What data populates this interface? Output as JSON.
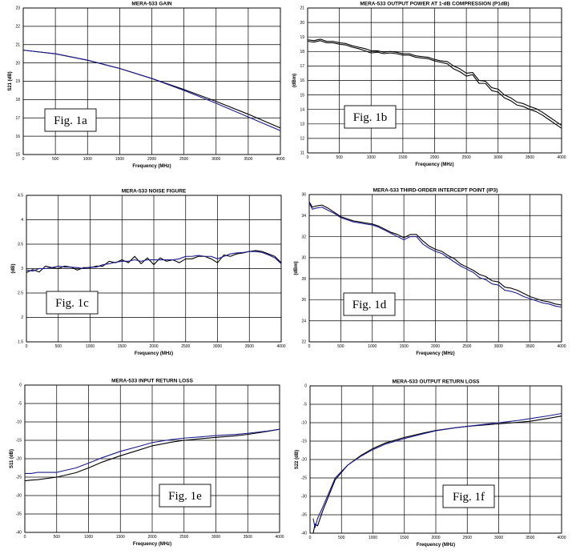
{
  "chart_data": [
    {
      "id": "gain",
      "type": "line",
      "title": "MERA-533    GAIN",
      "xlabel": "Frequency (MHz)",
      "ylabel": "S21 (dB)",
      "xlim": [
        0,
        4000
      ],
      "ylim": [
        15,
        23
      ],
      "xticks": [
        0,
        500,
        1000,
        1500,
        2000,
        2500,
        3000,
        3500,
        4000
      ],
      "yticks": [
        15,
        16,
        17,
        18,
        19,
        20,
        21,
        22,
        23
      ],
      "grid": true,
      "fig_label": "Fig. 1a",
      "series": [
        {
          "color": "#000000",
          "x": [
            0,
            500,
            1000,
            1500,
            2000,
            2500,
            3000,
            3500,
            4000
          ],
          "y": [
            20.7,
            20.5,
            20.15,
            19.7,
            19.15,
            18.55,
            17.9,
            17.2,
            16.45
          ]
        },
        {
          "color": "#1a1a8c",
          "x": [
            0,
            500,
            1000,
            1500,
            2000,
            2500,
            3000,
            3500,
            4000
          ],
          "y": [
            20.7,
            20.5,
            20.15,
            19.7,
            19.15,
            18.5,
            17.8,
            17.05,
            16.3
          ]
        }
      ]
    },
    {
      "id": "p1db",
      "type": "line",
      "title": "MERA-533    OUTPUT POWER AT 1-dB COMPRESSION (P1dB)",
      "xlabel": "Frequency (MHz)",
      "ylabel": "(dBm)",
      "xlim": [
        0,
        4000
      ],
      "ylim": [
        11,
        21
      ],
      "xticks": [
        0,
        500,
        1000,
        1500,
        2000,
        2500,
        3000,
        3500,
        4000
      ],
      "yticks": [
        11,
        12,
        13,
        14,
        15,
        16,
        17,
        18,
        19,
        20,
        21
      ],
      "grid": true,
      "fig_label": "Fig. 1b",
      "series": [
        {
          "color": "#000000",
          "x": [
            0,
            100,
            200,
            300,
            400,
            500,
            600,
            700,
            800,
            900,
            1000,
            1100,
            1200,
            1300,
            1400,
            1500,
            1600,
            1700,
            1800,
            1900,
            2000,
            2100,
            2200,
            2300,
            2400,
            2500,
            2600,
            2700,
            2800,
            2900,
            3000,
            3100,
            3200,
            3300,
            3400,
            3500,
            3600,
            3700,
            3800,
            3900,
            4000
          ],
          "y": [
            18.8,
            18.75,
            18.85,
            18.7,
            18.7,
            18.6,
            18.55,
            18.4,
            18.3,
            18.2,
            18.05,
            18.05,
            17.95,
            18.0,
            17.95,
            17.85,
            17.85,
            17.7,
            17.65,
            17.6,
            17.45,
            17.35,
            17.3,
            17.0,
            16.8,
            16.5,
            16.55,
            16.0,
            15.95,
            15.5,
            15.4,
            15.0,
            14.8,
            14.5,
            14.4,
            14.2,
            14.05,
            13.8,
            13.5,
            13.2,
            12.9
          ]
        },
        {
          "color": "#000000",
          "x": [
            0,
            100,
            200,
            300,
            400,
            500,
            600,
            700,
            800,
            900,
            1000,
            1100,
            1200,
            1300,
            1400,
            1500,
            1600,
            1700,
            1800,
            1900,
            2000,
            2100,
            2200,
            2300,
            2400,
            2500,
            2600,
            2700,
            2800,
            2900,
            3000,
            3100,
            3200,
            3300,
            3400,
            3500,
            3600,
            3700,
            3800,
            3900,
            4000
          ],
          "y": [
            18.7,
            18.65,
            18.75,
            18.6,
            18.6,
            18.5,
            18.45,
            18.3,
            18.2,
            18.05,
            17.9,
            17.95,
            17.85,
            17.9,
            17.85,
            17.75,
            17.75,
            17.6,
            17.55,
            17.5,
            17.35,
            17.25,
            17.15,
            16.8,
            16.6,
            16.3,
            16.4,
            15.8,
            15.8,
            15.3,
            15.2,
            14.8,
            14.6,
            14.3,
            14.2,
            14.0,
            13.85,
            13.6,
            13.3,
            13.0,
            12.7
          ]
        }
      ]
    },
    {
      "id": "nf",
      "type": "line",
      "title": "MERA-533    NOISE FIGURE",
      "xlabel": "Frequency (MHz)",
      "ylabel": "(dB)",
      "xlim": [
        0,
        4000
      ],
      "ylim": [
        1.5,
        4.5
      ],
      "xticks": [
        0,
        500,
        1000,
        1500,
        2000,
        2500,
        3000,
        3500,
        4000
      ],
      "yticks": [
        1.5,
        2,
        2.5,
        3,
        3.5,
        4,
        4.5
      ],
      "grid": true,
      "fig_label": "Fig. 1c",
      "series": [
        {
          "color": "#000000",
          "x": [
            0,
            100,
            200,
            300,
            400,
            500,
            600,
            700,
            800,
            900,
            1000,
            1100,
            1200,
            1300,
            1400,
            1500,
            1600,
            1700,
            1800,
            1900,
            2000,
            2100,
            2200,
            2300,
            2400,
            2500,
            2600,
            2700,
            2800,
            2900,
            3000,
            3100,
            3200,
            3300,
            3400,
            3500,
            3600,
            3700,
            3800,
            3900,
            4000
          ],
          "y": [
            2.92,
            2.98,
            2.93,
            3.05,
            3.02,
            3.0,
            3.05,
            3.03,
            2.97,
            3.02,
            3.02,
            3.05,
            3.05,
            3.15,
            3.12,
            3.18,
            3.12,
            3.25,
            3.1,
            3.22,
            3.08,
            3.22,
            3.15,
            3.18,
            3.12,
            3.2,
            3.2,
            3.25,
            3.25,
            3.2,
            3.12,
            3.28,
            3.25,
            3.3,
            3.32,
            3.35,
            3.37,
            3.35,
            3.3,
            3.25,
            3.12
          ]
        },
        {
          "color": "#1a1a8c",
          "x": [
            0,
            100,
            200,
            300,
            400,
            500,
            600,
            700,
            800,
            900,
            1000,
            1100,
            1200,
            1300,
            1400,
            1500,
            1600,
            1700,
            1800,
            1900,
            2000,
            2100,
            2200,
            2300,
            2400,
            2500,
            2600,
            2700,
            2800,
            2900,
            3000,
            3100,
            3200,
            3300,
            3400,
            3500,
            3600,
            3700,
            3800,
            3900,
            4000
          ],
          "y": [
            2.97,
            2.95,
            3.0,
            3.0,
            3.02,
            3.05,
            3.03,
            3.03,
            3.02,
            3.0,
            3.03,
            3.03,
            3.08,
            3.1,
            3.13,
            3.15,
            3.15,
            3.18,
            3.15,
            3.18,
            3.18,
            3.18,
            3.18,
            3.18,
            3.2,
            3.25,
            3.25,
            3.27,
            3.25,
            3.25,
            3.2,
            3.25,
            3.3,
            3.32,
            3.33,
            3.35,
            3.35,
            3.33,
            3.28,
            3.22,
            3.1
          ]
        }
      ]
    },
    {
      "id": "ip3",
      "type": "line",
      "title": "MERA-533    THIRD-ORDER INTERCEPT POINT (IP3)",
      "xlabel": "Frequency (MHz)",
      "ylabel": "(dBm)",
      "xlim": [
        0,
        4000
      ],
      "ylim": [
        22,
        36
      ],
      "xticks": [
        0,
        500,
        1000,
        1500,
        2000,
        2500,
        3000,
        3500,
        4000
      ],
      "yticks": [
        22,
        24,
        26,
        28,
        30,
        32,
        34,
        36
      ],
      "grid": true,
      "fig_label": "Fig. 1d",
      "series": [
        {
          "color": "#000000",
          "x": [
            0,
            50,
            100,
            200,
            300,
            400,
            500,
            600,
            700,
            800,
            900,
            1000,
            1100,
            1200,
            1300,
            1400,
            1500,
            1600,
            1700,
            1800,
            1900,
            2000,
            2100,
            2200,
            2300,
            2400,
            2500,
            2600,
            2700,
            2800,
            2900,
            3000,
            3100,
            3200,
            3300,
            3400,
            3500,
            3600,
            3700,
            3800,
            3900,
            4000
          ],
          "y": [
            35.3,
            34.8,
            34.9,
            35.0,
            34.7,
            34.3,
            33.9,
            33.7,
            33.5,
            33.4,
            33.3,
            33.2,
            33.0,
            32.7,
            32.4,
            32.2,
            31.9,
            32.2,
            32.2,
            31.6,
            31.1,
            30.8,
            30.6,
            30.2,
            29.9,
            29.4,
            29.1,
            28.8,
            28.4,
            28.2,
            27.8,
            27.7,
            27.2,
            27.1,
            26.9,
            26.6,
            26.3,
            26.1,
            25.9,
            25.8,
            25.6,
            25.5
          ]
        },
        {
          "color": "#1a1a8c",
          "x": [
            0,
            50,
            100,
            200,
            300,
            400,
            500,
            600,
            700,
            800,
            900,
            1000,
            1100,
            1200,
            1300,
            1400,
            1500,
            1600,
            1700,
            1800,
            1900,
            2000,
            2100,
            2200,
            2300,
            2400,
            2500,
            2600,
            2700,
            2800,
            2900,
            3000,
            3100,
            3200,
            3300,
            3400,
            3500,
            3600,
            3700,
            3800,
            3900,
            4000
          ],
          "y": [
            35.2,
            34.6,
            34.7,
            34.8,
            34.5,
            34.2,
            33.8,
            33.6,
            33.4,
            33.3,
            33.2,
            33.1,
            32.9,
            32.6,
            32.3,
            32.0,
            31.7,
            32.0,
            32.0,
            31.3,
            30.9,
            30.6,
            30.4,
            30.0,
            29.6,
            29.2,
            28.9,
            28.6,
            28.1,
            27.9,
            27.5,
            27.4,
            26.9,
            26.8,
            26.6,
            26.3,
            26.1,
            25.9,
            25.7,
            25.6,
            25.4,
            25.3
          ]
        }
      ]
    },
    {
      "id": "s11",
      "type": "line",
      "title": "MERA-533    INPUT RETURN LOSS",
      "xlabel": "Frequency (MHz)",
      "ylabel": "S11 (dB)",
      "xlim": [
        0,
        4000
      ],
      "ylim": [
        -40,
        0
      ],
      "xticks": [
        0,
        500,
        1000,
        1500,
        2000,
        2500,
        3000,
        3500,
        4000
      ],
      "yticks": [
        -40,
        -35,
        -30,
        -25,
        -20,
        -15,
        -10,
        -5,
        0
      ],
      "grid": true,
      "fig_label": "Fig. 1e",
      "series": [
        {
          "color": "#000000",
          "x": [
            0,
            100,
            200,
            500,
            800,
            1000,
            1200,
            1500,
            1800,
            2000,
            2300,
            2500,
            2800,
            3000,
            3300,
            3500,
            3800,
            4000
          ],
          "y": [
            -26.0,
            -25.8,
            -25.7,
            -25.0,
            -23.8,
            -22.5,
            -21.0,
            -19.2,
            -17.6,
            -16.5,
            -15.5,
            -15.0,
            -14.5,
            -14.2,
            -13.8,
            -13.4,
            -12.6,
            -12.0
          ]
        },
        {
          "color": "#1a1a8c",
          "x": [
            0,
            100,
            200,
            500,
            800,
            1000,
            1200,
            1500,
            1800,
            2000,
            2300,
            2500,
            2800,
            3000,
            3300,
            3500,
            3800,
            4000
          ],
          "y": [
            -24.0,
            -24.0,
            -23.7,
            -23.7,
            -22.5,
            -21.2,
            -19.8,
            -18.0,
            -16.6,
            -15.6,
            -14.8,
            -14.4,
            -14.0,
            -13.7,
            -13.4,
            -13.1,
            -12.5,
            -12.0
          ]
        }
      ]
    },
    {
      "id": "s22",
      "type": "line",
      "title": "MERA-533    OUTPUT RETURN LOSS",
      "xlabel": "Frequency (MHz)",
      "ylabel": "S22 (dB)",
      "xlim": [
        0,
        4000
      ],
      "ylim": [
        -40,
        0
      ],
      "xticks": [
        0,
        500,
        1000,
        1500,
        2000,
        2500,
        3000,
        3500,
        4000
      ],
      "yticks": [
        -40,
        -35,
        -30,
        -25,
        -20,
        -15,
        -10,
        -5,
        0
      ],
      "grid": true,
      "fig_label": "Fig. 1f",
      "series": [
        {
          "color": "#000000",
          "x": [
            50,
            80,
            120,
            200,
            400,
            600,
            800,
            1000,
            1200,
            1500,
            1800,
            2000,
            2300,
            2500,
            2800,
            3000,
            3300,
            3500,
            3800,
            4000
          ],
          "y": [
            -40.0,
            -37.5,
            -38.0,
            -34.0,
            -25.5,
            -21.5,
            -19.0,
            -17.0,
            -15.5,
            -14.0,
            -12.8,
            -12.1,
            -11.4,
            -11.0,
            -10.6,
            -10.3,
            -9.9,
            -9.6,
            -8.8,
            -8.2
          ]
        },
        {
          "color": "#1a1a8c",
          "x": [
            50,
            80,
            120,
            200,
            400,
            600,
            800,
            1000,
            1200,
            1500,
            1800,
            2000,
            2300,
            2500,
            2800,
            3000,
            3300,
            3500,
            3800,
            4000
          ],
          "y": [
            -36.0,
            -38.5,
            -36.0,
            -33.0,
            -25.0,
            -21.5,
            -19.2,
            -17.3,
            -15.8,
            -14.3,
            -13.0,
            -12.2,
            -11.4,
            -11.0,
            -10.4,
            -10.0,
            -9.4,
            -8.9,
            -8.1,
            -7.5
          ]
        }
      ]
    }
  ]
}
